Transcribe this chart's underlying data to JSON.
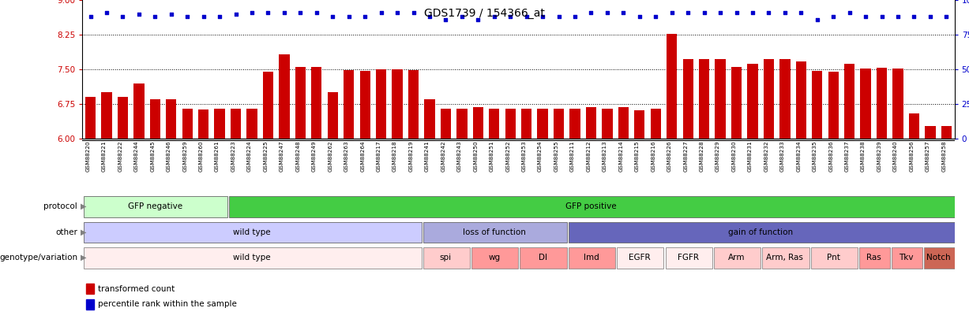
{
  "title": "GDS1739 / 154366_at",
  "samples": [
    "GSM88220",
    "GSM88221",
    "GSM88222",
    "GSM88244",
    "GSM88245",
    "GSM88246",
    "GSM88259",
    "GSM88260",
    "GSM88261",
    "GSM88223",
    "GSM88224",
    "GSM88225",
    "GSM88247",
    "GSM88248",
    "GSM88249",
    "GSM88262",
    "GSM88263",
    "GSM88264",
    "GSM88217",
    "GSM88218",
    "GSM88219",
    "GSM88241",
    "GSM88242",
    "GSM88243",
    "GSM88250",
    "GSM88251",
    "GSM88252",
    "GSM88253",
    "GSM88254",
    "GSM88255",
    "GSM88211",
    "GSM88212",
    "GSM88213",
    "GSM88214",
    "GSM88215",
    "GSM88216",
    "GSM88226",
    "GSM88227",
    "GSM88228",
    "GSM88229",
    "GSM88230",
    "GSM88231",
    "GSM88232",
    "GSM88233",
    "GSM88234",
    "GSM88235",
    "GSM88236",
    "GSM88237",
    "GSM88238",
    "GSM88239",
    "GSM88240",
    "GSM88256",
    "GSM88257",
    "GSM88258"
  ],
  "bar_values": [
    6.9,
    7.0,
    6.9,
    7.2,
    6.85,
    6.85,
    6.65,
    6.63,
    6.65,
    6.65,
    6.65,
    7.45,
    7.82,
    7.55,
    7.55,
    7.0,
    7.48,
    7.47,
    7.5,
    7.5,
    7.48,
    6.85,
    6.65,
    6.65,
    6.68,
    6.65,
    6.65,
    6.65,
    6.65,
    6.65,
    6.65,
    6.68,
    6.65,
    6.68,
    6.62,
    6.65,
    8.27,
    7.73,
    7.72,
    7.72,
    7.56,
    7.62,
    7.73,
    7.72,
    7.68,
    7.47,
    7.45,
    7.62,
    7.52,
    7.53,
    7.52,
    6.55,
    6.28,
    6.28
  ],
  "percentile_values": [
    88,
    91,
    88,
    90,
    88,
    90,
    88,
    88,
    88,
    90,
    91,
    91,
    91,
    91,
    91,
    88,
    88,
    88,
    91,
    91,
    91,
    88,
    86,
    88,
    86,
    88,
    88,
    88,
    88,
    88,
    88,
    91,
    91,
    91,
    88,
    88,
    91,
    91,
    91,
    91,
    91,
    91,
    91,
    91,
    91,
    86,
    88,
    91,
    88,
    88,
    88,
    88,
    88,
    88
  ],
  "bar_color": "#cc0000",
  "dot_color": "#0000cc",
  "ylim_left": [
    6.0,
    9.0
  ],
  "ylim_right": [
    0,
    100
  ],
  "yticks_left": [
    6.0,
    6.75,
    7.5,
    8.25,
    9.0
  ],
  "yticks_right": [
    0,
    25,
    50,
    75,
    100
  ],
  "hlines": [
    6.75,
    7.5,
    8.25
  ],
  "protocol_groups": [
    {
      "label": "GFP negative",
      "start": 0,
      "end": 9,
      "color": "#ccffcc",
      "border": "#666666"
    },
    {
      "label": "GFP positive",
      "start": 9,
      "end": 54,
      "color": "#44cc44",
      "border": "#666666"
    }
  ],
  "other_groups": [
    {
      "label": "wild type",
      "start": 0,
      "end": 21,
      "color": "#ccccff",
      "border": "#666666"
    },
    {
      "label": "loss of function",
      "start": 21,
      "end": 30,
      "color": "#aaaadd",
      "border": "#666666"
    },
    {
      "label": "gain of function",
      "start": 30,
      "end": 54,
      "color": "#6666bb",
      "border": "#666666"
    }
  ],
  "genotype_groups": [
    {
      "label": "wild type",
      "start": 0,
      "end": 21,
      "color": "#ffeeee",
      "border": "#888888"
    },
    {
      "label": "spi",
      "start": 21,
      "end": 24,
      "color": "#ffcccc",
      "border": "#888888"
    },
    {
      "label": "wg",
      "start": 24,
      "end": 27,
      "color": "#ff9999",
      "border": "#888888"
    },
    {
      "label": "Dl",
      "start": 27,
      "end": 30,
      "color": "#ff9999",
      "border": "#888888"
    },
    {
      "label": "lmd",
      "start": 30,
      "end": 33,
      "color": "#ff9999",
      "border": "#888888"
    },
    {
      "label": "EGFR",
      "start": 33,
      "end": 36,
      "color": "#ffeeee",
      "border": "#888888"
    },
    {
      "label": "FGFR",
      "start": 36,
      "end": 39,
      "color": "#ffeeee",
      "border": "#888888"
    },
    {
      "label": "Arm",
      "start": 39,
      "end": 42,
      "color": "#ffcccc",
      "border": "#888888"
    },
    {
      "label": "Arm, Ras",
      "start": 42,
      "end": 45,
      "color": "#ffcccc",
      "border": "#888888"
    },
    {
      "label": "Pnt",
      "start": 45,
      "end": 48,
      "color": "#ffcccc",
      "border": "#888888"
    },
    {
      "label": "Ras",
      "start": 48,
      "end": 50,
      "color": "#ff9999",
      "border": "#888888"
    },
    {
      "label": "Tkv",
      "start": 50,
      "end": 52,
      "color": "#ff9999",
      "border": "#888888"
    },
    {
      "label": "Notch",
      "start": 52,
      "end": 54,
      "color": "#cc6655",
      "border": "#888888"
    }
  ]
}
